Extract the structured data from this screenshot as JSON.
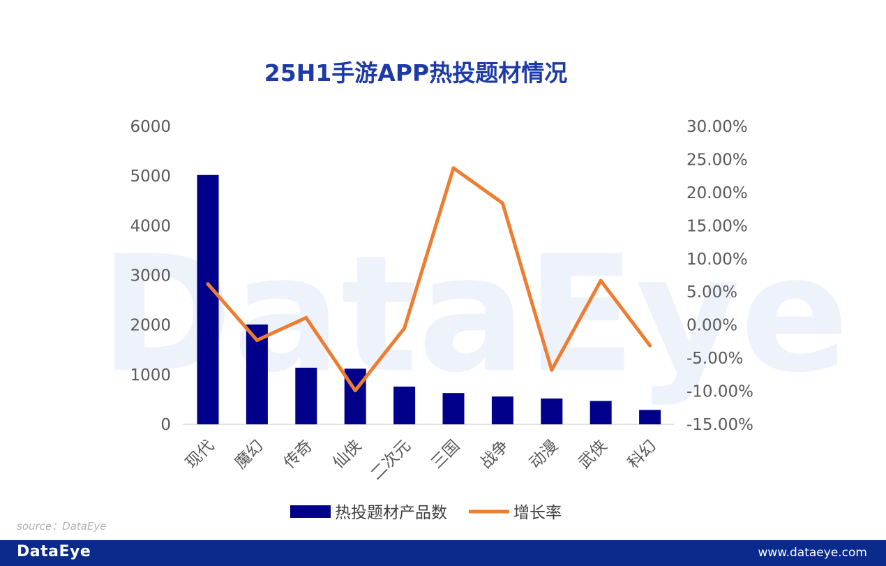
{
  "watermark": "DataEye",
  "source_text": "source：DataEye",
  "footer": {
    "brand": "DataEye",
    "url": "www.dataeye.com"
  },
  "colors": {
    "bar": "#00008b",
    "line": "#ed7d31",
    "title": "#1d3aa6",
    "footer_bg": "#0a2a8c"
  },
  "chart_data": {
    "type": "bar",
    "title": "25H1手游APP热投题材情况",
    "categories": [
      "现代",
      "魔幻",
      "传奇",
      "仙侠",
      "二次元",
      "三国",
      "战争",
      "动漫",
      "武侠",
      "科幻"
    ],
    "series": [
      {
        "name": "热投题材产品数",
        "type": "bar",
        "axis": "left",
        "values": [
          5020,
          2010,
          1140,
          1120,
          760,
          630,
          560,
          520,
          470,
          290
        ]
      },
      {
        "name": "增长率",
        "type": "line",
        "axis": "right",
        "values": [
          6.2,
          -2.3,
          1.1,
          -9.9,
          -0.5,
          23.7,
          18.4,
          -6.8,
          6.7,
          -3.1
        ]
      }
    ],
    "y_left": {
      "min": 0,
      "max": 6000,
      "ticks": [
        "0",
        "1000",
        "2000",
        "3000",
        "4000",
        "5000",
        "6000"
      ]
    },
    "y_right": {
      "min": -15,
      "max": 30,
      "ticks": [
        "-15.00%",
        "-10.00%",
        "-5.00%",
        "0.00%",
        "5.00%",
        "10.00%",
        "15.00%",
        "20.00%",
        "25.00%",
        "30.00%"
      ]
    },
    "grid": false,
    "legend": "bottom"
  }
}
